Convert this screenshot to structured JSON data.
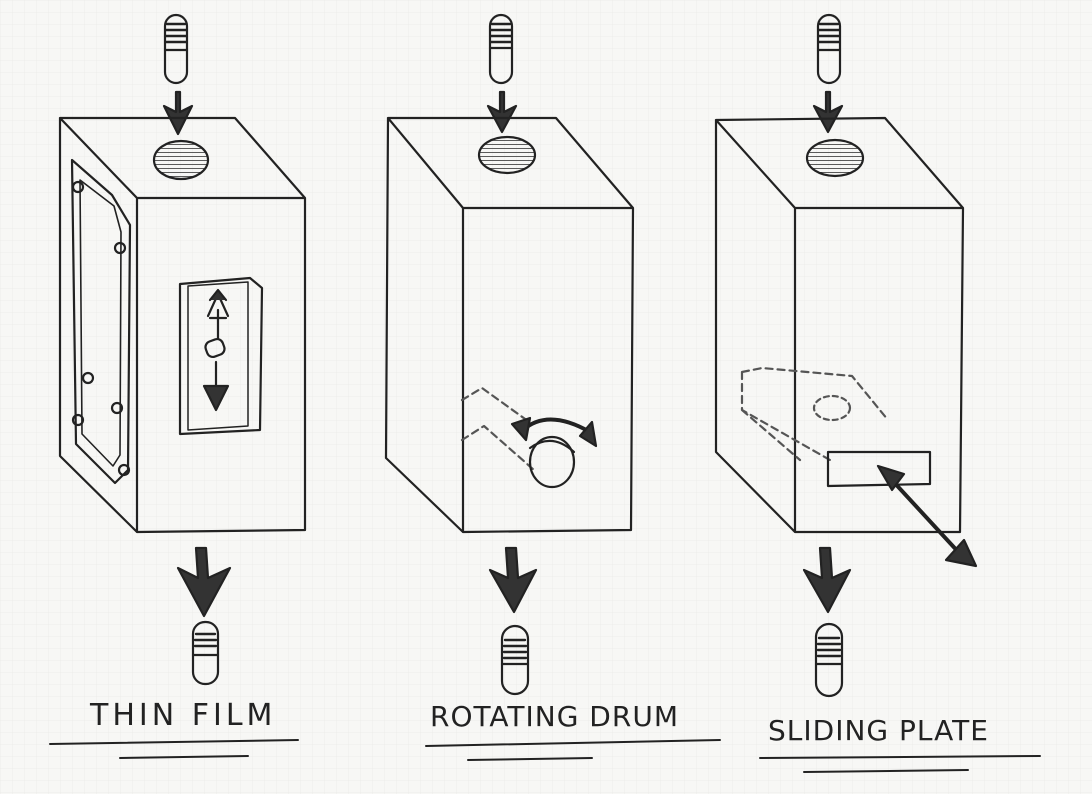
{
  "diagram": {
    "panels": [
      {
        "label": "Thin Film",
        "motion": "up-down"
      },
      {
        "label": "Rotating Drum",
        "motion": "rotate"
      },
      {
        "label": "Sliding Plate",
        "motion": "slide-diagonal"
      }
    ]
  },
  "colors": {
    "paper": "#f7f7f5",
    "grid": "#e6e6e2",
    "ink": "#222222",
    "ink_dark": "#333333",
    "dash": "#555555"
  },
  "icons": [
    "capsule-icon",
    "down-arrow-icon",
    "double-arrow-icon",
    "rotation-arrow-icon"
  ]
}
